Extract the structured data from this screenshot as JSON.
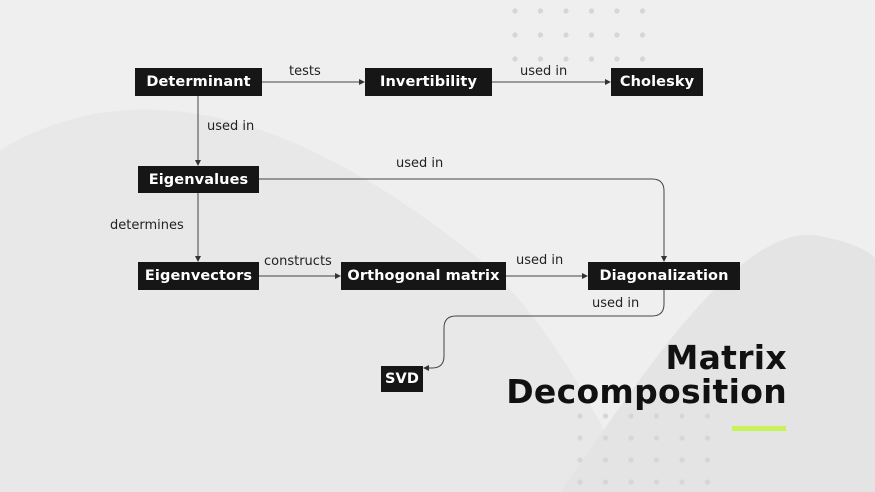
{
  "diagram": {
    "nodes": {
      "determinant": "Determinant",
      "invertibility": "Invertibility",
      "cholesky": "Cholesky",
      "eigenvalues": "Eigenvalues",
      "eigenvectors": "Eigenvectors",
      "orthogonal_matrix": "Orthogonal matrix",
      "diagonalization": "Diagonalization",
      "svd": "SVD"
    },
    "edges": {
      "determinant_invertibility": "tests",
      "invertibility_cholesky": "used in",
      "determinant_eigenvalues": "used in",
      "eigenvalues_diagonalization": "used in",
      "eigenvalues_eigenvectors": "determines",
      "eigenvectors_orthogonal": "constructs",
      "orthogonal_diagonalization": "used in",
      "diagonalization_svd": "used in"
    }
  },
  "title": {
    "line1": "Matrix",
    "line2": "Decomposition"
  },
  "colors": {
    "background": "#efefef",
    "node_fill": "#161616",
    "node_text": "#ffffff",
    "accent": "#c8f25a"
  }
}
